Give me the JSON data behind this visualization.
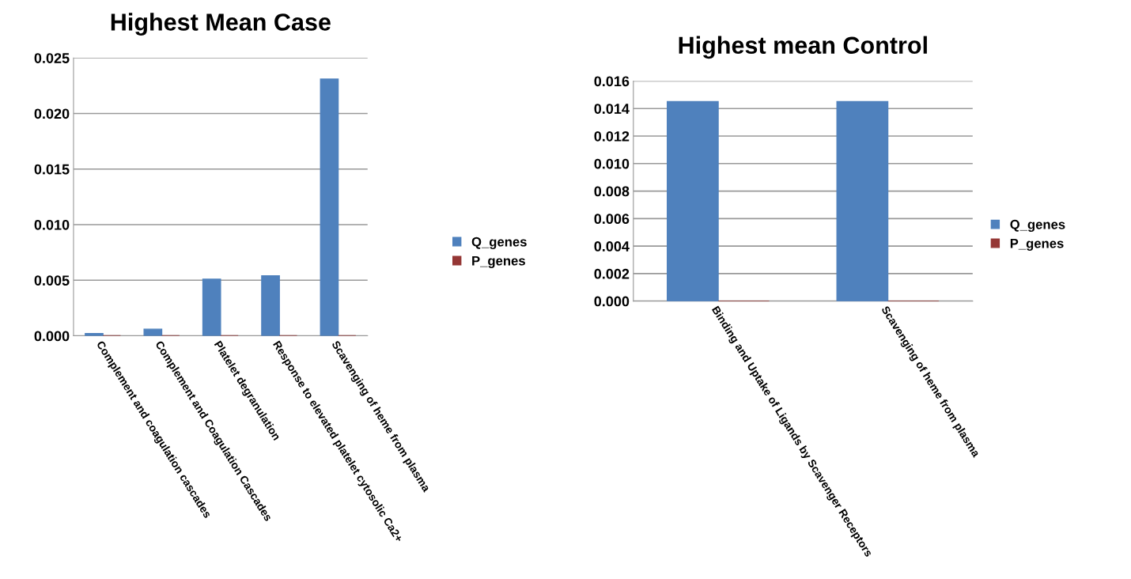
{
  "chart_data": [
    {
      "type": "bar",
      "title": "Highest Mean Case",
      "categories": [
        "Complement and coagulation cascades",
        "Complement and Coagulation Cascades",
        "Platelet degranulation",
        "Response to elevated platelet cytosolic Ca2+",
        "Scavenging of heme from plasma"
      ],
      "series": [
        {
          "name": "Q_genes",
          "color": "#4f81bd",
          "values": [
            0.0002,
            0.0006,
            0.0051,
            0.0054,
            0.0231
          ]
        },
        {
          "name": "P_genes",
          "color": "#953735",
          "values": [
            0,
            0,
            0,
            0,
            0
          ]
        }
      ],
      "ylim": [
        0,
        0.025
      ],
      "yticks": [
        {
          "value": 0,
          "label": "0.000"
        },
        {
          "value": 0.005,
          "label": "0.005"
        },
        {
          "value": 0.01,
          "label": "0.010"
        },
        {
          "value": 0.015,
          "label": "0.015"
        },
        {
          "value": 0.02,
          "label": "0.020"
        },
        {
          "value": 0.025,
          "label": "0.025"
        }
      ],
      "grid": "y",
      "legend": "right"
    },
    {
      "type": "bar",
      "title": "Highest mean Control",
      "categories": [
        "Binding and Uptake of Ligands by Scavenger Receptors",
        "Scavenging of heme from plasma"
      ],
      "series": [
        {
          "name": "Q_genes",
          "color": "#4f81bd",
          "values": [
            0.0145,
            0.0145
          ]
        },
        {
          "name": "P_genes",
          "color": "#953735",
          "values": [
            0,
            0
          ]
        }
      ],
      "ylim": [
        0,
        0.016
      ],
      "yticks": [
        {
          "value": 0,
          "label": "0.000"
        },
        {
          "value": 0.002,
          "label": "0.002"
        },
        {
          "value": 0.004,
          "label": "0.004"
        },
        {
          "value": 0.006,
          "label": "0.006"
        },
        {
          "value": 0.008,
          "label": "0.008"
        },
        {
          "value": 0.01,
          "label": "0.010"
        },
        {
          "value": 0.012,
          "label": "0.012"
        },
        {
          "value": 0.014,
          "label": "0.014"
        },
        {
          "value": 0.016,
          "label": "0.016"
        }
      ],
      "grid": "y",
      "legend": "right"
    }
  ]
}
